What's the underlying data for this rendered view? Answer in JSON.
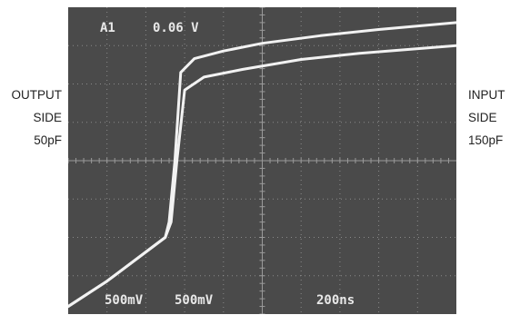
{
  "left_label": {
    "line1": "OUTPUT",
    "line2": "SIDE",
    "line3": "50pF"
  },
  "right_label": {
    "line1": "INPUT",
    "line2": "SIDE",
    "line3": "150pF"
  },
  "scope": {
    "channel": "A1",
    "trigger_level": "0.06 V",
    "ch1_scale": "500mV",
    "ch2_scale": "500mV",
    "time_scale": "200ns",
    "background_color": "#4a4a4a",
    "grid_color": "#9a9a9a",
    "trace_color": "#f2f2f2"
  },
  "chart_data": {
    "type": "line",
    "x_unit": "ns",
    "y_unit": "V",
    "xlim": [
      0,
      2000
    ],
    "ylim": [
      -2,
      2
    ],
    "divisions": {
      "x": 10,
      "y": 8
    },
    "series": [
      {
        "x": [
          0,
          200,
          500,
          520,
          550,
          580,
          650,
          800,
          1000,
          1300,
          1600,
          2000
        ],
        "y": [
          -1.9,
          -1.57,
          -1.0,
          -0.8,
          0.0,
          1.15,
          1.33,
          1.43,
          1.53,
          1.63,
          1.71,
          1.8
        ]
      },
      {
        "x": [
          0,
          200,
          500,
          530,
          560,
          600,
          700,
          900,
          1200,
          1500,
          2000
        ],
        "y": [
          -1.9,
          -1.57,
          -1.0,
          -0.8,
          0.0,
          0.92,
          1.09,
          1.19,
          1.32,
          1.4,
          1.5
        ]
      }
    ]
  }
}
